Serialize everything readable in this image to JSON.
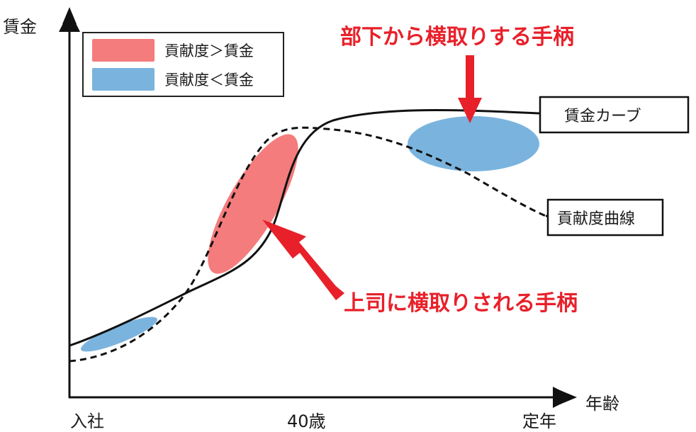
{
  "axes": {
    "y_label": "賃金",
    "x_label": "年齢",
    "x_ticks": [
      "入社",
      "40歳",
      "定年"
    ]
  },
  "legend": {
    "items": [
      {
        "label": "貢献度＞賃金",
        "color": "#f47c7c"
      },
      {
        "label": "貢献度＜賃金",
        "color": "#7ab4de"
      }
    ]
  },
  "curves": {
    "wage_label": "賃金カーブ",
    "contribution_label": "貢献度曲線"
  },
  "annotations": {
    "top": "部下から横取りする手柄",
    "bottom": "上司に横取りされる手柄"
  },
  "colors": {
    "accent_red": "#e8202a",
    "overpaid_blue": "#7ab4de",
    "underpaid_red": "#f47c7c",
    "line": "#111111"
  }
}
